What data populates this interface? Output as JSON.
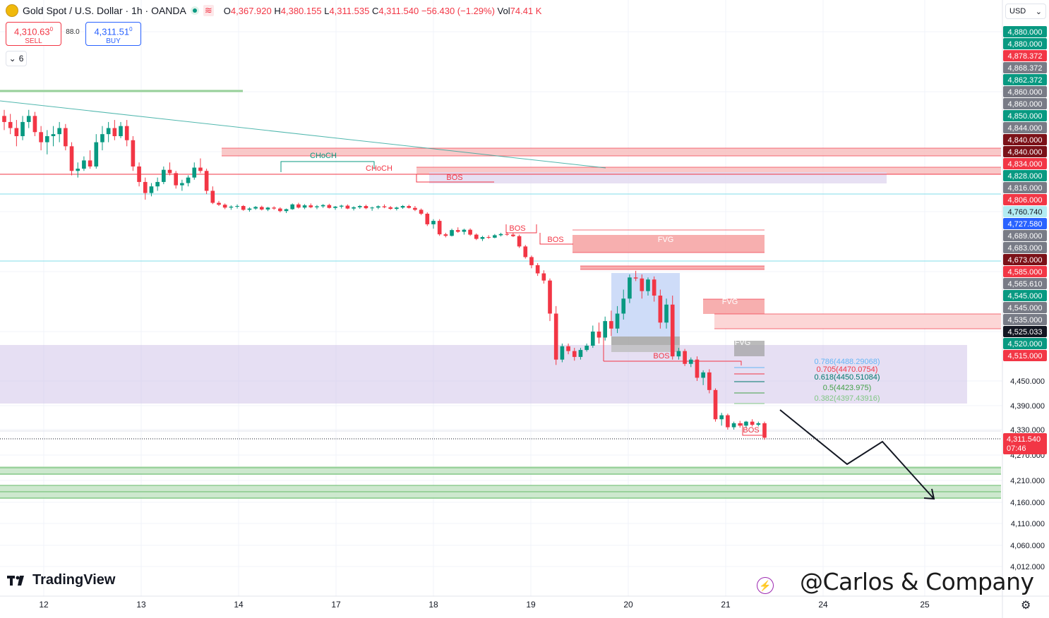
{
  "header": {
    "symbol": "Gold Spot / U.S. Dollar · 1h · OANDA",
    "open_label": "O",
    "open": "4,367.920",
    "high_label": "H",
    "high": "4,380.155",
    "low_label": "L",
    "low": "4,311.535",
    "close_label": "C",
    "close": "4,311.540",
    "change": "−56.430 (−1.29%)",
    "vol_label": "Vol",
    "vol": "74.41 K"
  },
  "trade": {
    "sell_price": "4,310.63",
    "sell_price_sup": "0",
    "sell_label": "SELL",
    "spread": "88.0",
    "buy_price": "4,311.51",
    "buy_price_sup": "0",
    "buy_label": "BUY"
  },
  "indicators_collapsed_count": "6",
  "currency": "USD",
  "branding": {
    "logo": "TradingView",
    "watermark": "@Carlos & Company"
  },
  "colors": {
    "bull": "#089981",
    "bear": "#f23645",
    "supply": "#f23645",
    "demand_zone": "#d1c4e9",
    "fib_zone": "#d1c4e9",
    "support": "#a5d6a7"
  },
  "chart_data": {
    "type": "candlestick",
    "instrument": "XAUUSD",
    "timeframe": "1h",
    "x_ticks": [
      "12",
      "13",
      "14",
      "17",
      "18",
      "19",
      "20",
      "21",
      "24",
      "25"
    ],
    "y_ticks": [
      "4,450.000",
      "4,390.000",
      "4,330.000",
      "4,270.000",
      "4,210.000",
      "4,160.000",
      "4,110.000",
      "4,060.000",
      "4,012.000"
    ],
    "ylim": [
      3990,
      4900
    ],
    "price_tags": [
      {
        "value": "4,880.000",
        "color": "#089981",
        "text": "4,880.000"
      },
      {
        "value": "4,880.000",
        "color": "#089981",
        "text": "4,880.000"
      },
      {
        "value": "4,878.372",
        "color": "#f23645",
        "text": "4,878.372"
      },
      {
        "value": "4,868.372",
        "color": "#787b86",
        "text": "4,868.372"
      },
      {
        "value": "4,862.372",
        "color": "#089981",
        "text": "4,862.372"
      },
      {
        "value": "4,860.000",
        "color": "#787b86",
        "text": "4,860.000"
      },
      {
        "value": "4,860.000",
        "color": "#787b86",
        "text": "4,860.000"
      },
      {
        "value": "4,850.000",
        "color": "#089981",
        "text": "4,850.000"
      },
      {
        "value": "4,844.000",
        "color": "#787b86",
        "text": "4,844.000"
      },
      {
        "value": "4,840.000",
        "color": "#7b1118",
        "text": "4,840.000"
      },
      {
        "value": "4,840.000",
        "color": "#7b1118",
        "text": "4,840.000"
      },
      {
        "value": "4,834.000",
        "color": "#f23645",
        "text": "4,834.000"
      },
      {
        "value": "4,828.000",
        "color": "#089981",
        "text": "4,828.000"
      },
      {
        "value": "4,816.000",
        "color": "#787b86",
        "text": "4,816.000"
      },
      {
        "value": "4,806.000",
        "color": "#f23645",
        "text": "4,806.000"
      },
      {
        "value": "4,760.740",
        "color": "#b2ebf2",
        "text": "4,760.740",
        "dark": true
      },
      {
        "value": "4,727.580",
        "color": "#2962ff",
        "text": "4,727.580"
      },
      {
        "value": "4,689.000",
        "color": "#787b86",
        "text": "4,689.000"
      },
      {
        "value": "4,683.000",
        "color": "#787b86",
        "text": "4,683.000"
      },
      {
        "value": "4,673.000",
        "color": "#7b1118",
        "text": "4,673.000"
      },
      {
        "value": "4,585.000",
        "color": "#f23645",
        "text": "4,585.000"
      },
      {
        "value": "4,565.610",
        "color": "#787b86",
        "text": "4,565.610"
      },
      {
        "value": "4,545.000",
        "color": "#089981",
        "text": "4,545.000"
      },
      {
        "value": "4,545.000",
        "color": "#787b86",
        "text": "4,545.000"
      },
      {
        "value": "4,535.000",
        "color": "#787b86",
        "text": "4,535.000"
      },
      {
        "value": "4,525.033",
        "color": "#131722",
        "text": "4,525.033"
      },
      {
        "value": "4,520.000",
        "color": "#089981",
        "text": "4,520.000"
      },
      {
        "value": "4,515.000",
        "color": "#f23645",
        "text": "4,515.000"
      }
    ],
    "last_price": {
      "value": 4311.54,
      "text": "4,311.540",
      "countdown": "07:46"
    },
    "fib_levels": [
      {
        "label": "0.786(4488.29068)",
        "color": "#64b5f6"
      },
      {
        "label": "0.705(4470.0754)",
        "color": "#f23645"
      },
      {
        "label": "0.618(4450.51084)",
        "color": "#00796b"
      },
      {
        "label": "0.5(4423.975)",
        "color": "#43a047"
      },
      {
        "label": "0.382(4397.43916)",
        "color": "#81c784"
      }
    ],
    "annotations": [
      "CHoCH",
      "CHoCH",
      "BOS",
      "BOS",
      "BOS",
      "BOS",
      "BOS",
      "FVG",
      "FVG",
      "FVG"
    ],
    "candles_approx": [
      [
        4855,
        4858,
        4848,
        4852
      ],
      [
        4852,
        4856,
        4846,
        4849
      ],
      [
        4849,
        4853,
        4840,
        4845
      ],
      [
        4845,
        4855,
        4843,
        4852
      ],
      [
        4852,
        4858,
        4849,
        4855
      ],
      [
        4855,
        4857,
        4845,
        4847
      ],
      [
        4847,
        4850,
        4838,
        4842
      ],
      [
        4842,
        4848,
        4836,
        4845
      ],
      [
        4845,
        4850,
        4840,
        4846
      ],
      [
        4846,
        4852,
        4842,
        4849
      ],
      [
        4849,
        4851,
        4838,
        4840
      ],
      [
        4840,
        4842,
        4822,
        4826
      ],
      [
        4826,
        4832,
        4820,
        4828
      ],
      [
        4828,
        4835,
        4826,
        4833
      ],
      [
        4833,
        4838,
        4828,
        4830
      ],
      [
        4830,
        4846,
        4828,
        4842
      ],
      [
        4842,
        4850,
        4838,
        4846
      ],
      [
        4846,
        4852,
        4842,
        4849
      ],
      [
        4849,
        4853,
        4843,
        4845
      ],
      [
        4845,
        4852,
        4844,
        4850
      ],
      [
        4850,
        4853,
        4840,
        4843
      ],
      [
        4843,
        4845,
        4826,
        4830
      ],
      [
        4830,
        4832,
        4812,
        4816
      ],
      [
        4816,
        4820,
        4800,
        4806
      ],
      [
        4806,
        4815,
        4803,
        4812
      ],
      [
        4812,
        4820,
        4808,
        4816
      ],
      [
        4816,
        4830,
        4814,
        4827
      ],
      [
        4827,
        4832,
        4822,
        4824
      ],
      [
        4824,
        4826,
        4810,
        4813
      ],
      [
        4813,
        4818,
        4808,
        4815
      ],
      [
        4815,
        4822,
        4812,
        4820
      ],
      [
        4820,
        4832,
        4818,
        4829
      ],
      [
        4829,
        4834,
        4824,
        4826
      ],
      [
        4826,
        4828,
        4805,
        4808
      ],
      [
        4808,
        4812,
        4786,
        4790
      ],
      [
        4790,
        4796,
        4780,
        4784
      ],
      [
        4784,
        4788,
        4770,
        4775
      ],
      [
        4775,
        4782,
        4768,
        4778
      ],
      [
        4778,
        4785,
        4772,
        4780
      ],
      [
        4780,
        4783,
        4765,
        4768
      ],
      [
        4768,
        4776,
        4762,
        4772
      ],
      [
        4772,
        4780,
        4768,
        4777
      ],
      [
        4777,
        4781,
        4766,
        4769
      ],
      [
        4769,
        4777,
        4764,
        4775
      ],
      [
        4775,
        4779,
        4768,
        4772
      ],
      [
        4772,
        4776,
        4760,
        4764
      ],
      [
        4764,
        4772,
        4758,
        4770
      ],
      [
        4770,
        4788,
        4768,
        4785
      ],
      [
        4785,
        4790,
        4772,
        4775
      ],
      [
        4775,
        4786,
        4770,
        4782
      ],
      [
        4782,
        4788,
        4773,
        4776
      ],
      [
        4776,
        4783,
        4770,
        4779
      ],
      [
        4779,
        4786,
        4774,
        4783
      ],
      [
        4783,
        4787,
        4772,
        4774
      ],
      [
        4774,
        4780,
        4768,
        4778
      ],
      [
        4778,
        4784,
        4772,
        4781
      ],
      [
        4781,
        4785,
        4770,
        4772
      ],
      [
        4772,
        4779,
        4766,
        4776
      ],
      [
        4776,
        4783,
        4771,
        4780
      ],
      [
        4780,
        4784,
        4770,
        4773
      ],
      [
        4773,
        4778,
        4765,
        4775
      ],
      [
        4775,
        4782,
        4770,
        4779
      ],
      [
        4779,
        4785,
        4773,
        4776
      ],
      [
        4776,
        4780,
        4768,
        4771
      ],
      [
        4771,
        4778,
        4766,
        4775
      ],
      [
        4775,
        4783,
        4771,
        4780
      ],
      [
        4780,
        4784,
        4772,
        4774
      ],
      [
        4774,
        4780,
        4764,
        4768
      ],
      [
        4768,
        4772,
        4752,
        4756
      ],
      [
        4756,
        4760,
        4720,
        4725
      ],
      [
        4725,
        4740,
        4712,
        4735
      ],
      [
        4735,
        4740,
        4690,
        4695
      ],
      [
        4695,
        4700,
        4685,
        4690
      ],
      [
        4690,
        4712,
        4688,
        4708
      ],
      [
        4708,
        4716,
        4700,
        4703
      ],
      [
        4703,
        4712,
        4694,
        4709
      ],
      [
        4709,
        4713,
        4690,
        4694
      ],
      [
        4694,
        4698,
        4676,
        4680
      ],
      [
        4680,
        4690,
        4673,
        4686
      ],
      [
        4686,
        4692,
        4680,
        4684
      ],
      [
        4684,
        4696,
        4682,
        4692
      ],
      [
        4692,
        4700,
        4688,
        4696
      ],
      [
        4696,
        4702,
        4690,
        4694
      ],
      [
        4694,
        4699,
        4686,
        4689
      ],
      [
        4689,
        4694,
        4650,
        4655
      ],
      [
        4655,
        4660,
        4615,
        4620
      ],
      [
        4620,
        4625,
        4590,
        4596
      ],
      [
        4596,
        4600,
        4575,
        4580
      ],
      [
        4580,
        4586,
        4560,
        4566
      ],
      [
        4566,
        4570,
        4535,
        4540
      ],
      [
        4540,
        4545,
        4480,
        4490
      ],
      [
        4490,
        4520,
        4485,
        4515
      ],
      [
        4515,
        4520,
        4500,
        4506
      ],
      [
        4506,
        4512,
        4488,
        4495
      ],
      [
        4495,
        4512,
        4490,
        4508
      ],
      [
        4508,
        4520,
        4505,
        4516
      ],
      [
        4516,
        4532,
        4512,
        4528
      ],
      [
        4528,
        4534,
        4520,
        4524
      ],
      [
        4524,
        4538,
        4522,
        4535
      ],
      [
        4535,
        4542,
        4525,
        4530
      ],
      [
        4530,
        4545,
        4527,
        4540
      ],
      [
        4540,
        4556,
        4536,
        4550
      ],
      [
        4550,
        4578,
        4547,
        4572
      ],
      [
        4572,
        4585,
        4565,
        4570
      ],
      [
        4570,
        4578,
        4550,
        4555
      ],
      [
        4555,
        4572,
        4552,
        4568
      ],
      [
        4568,
        4574,
        4548,
        4552
      ],
      [
        4552,
        4556,
        4530,
        4534
      ],
      [
        4534,
        4550,
        4530,
        4546
      ],
      [
        4546,
        4552,
        4490,
        4496
      ],
      [
        4496,
        4512,
        4490,
        4506
      ],
      [
        4506,
        4510,
        4478,
        4482
      ],
      [
        4482,
        4494,
        4476,
        4490
      ],
      [
        4490,
        4496,
        4450,
        4456
      ],
      [
        4456,
        4470,
        4440,
        4466
      ],
      [
        4466,
        4472,
        4420,
        4428
      ],
      [
        4428,
        4432,
        4350,
        4356
      ],
      [
        4356,
        4372,
        4340,
        4366
      ],
      [
        4366,
        4370,
        4330,
        4336
      ],
      [
        4336,
        4350,
        4330,
        4346
      ],
      [
        4346,
        4352,
        4335,
        4340
      ],
      [
        4340,
        4352,
        4334,
        4350
      ],
      [
        4350,
        4356,
        4338,
        4342
      ],
      [
        4342,
        4350,
        4338,
        4346
      ],
      [
        4346,
        4350,
        4306,
        4311
      ]
    ],
    "projection_path": [
      [
        4341,
        0
      ],
      [
        4228,
        1
      ],
      [
        4285,
        2
      ],
      [
        4154,
        3
      ]
    ]
  }
}
